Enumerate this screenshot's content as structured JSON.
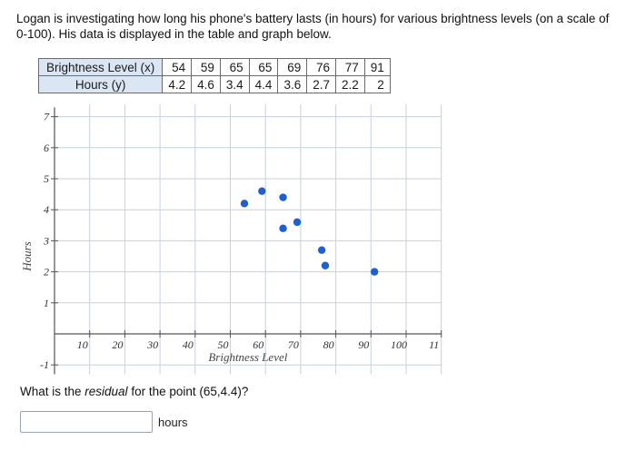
{
  "prompt": "Logan is investigating how long his phone's battery lasts (in hours) for various brightness levels (on a scale of 0-100). His data is displayed in the table and graph below.",
  "table": {
    "x_header": "Brightness Level (x)",
    "y_header": "Hours (y)",
    "x_values": [
      "54",
      "59",
      "65",
      "65",
      "69",
      "76",
      "77",
      "91"
    ],
    "y_values": [
      "4.2",
      "4.6",
      "3.4",
      "4.4",
      "3.6",
      "2.7",
      "2.2",
      "2"
    ]
  },
  "chart_data": {
    "type": "scatter",
    "xlabel": "Brightness Level",
    "ylabel": "Hours",
    "xlim": [
      0,
      110
    ],
    "ylim": [
      -1,
      7
    ],
    "x_ticks": [
      "10",
      "20",
      "30",
      "40",
      "50",
      "60",
      "70",
      "80",
      "90",
      "100",
      "11"
    ],
    "y_ticks": [
      "7",
      "6",
      "5",
      "4",
      "3",
      "2",
      "1",
      "-1"
    ],
    "points": [
      {
        "x": 54,
        "y": 4.2
      },
      {
        "x": 59,
        "y": 4.6
      },
      {
        "x": 65,
        "y": 3.4
      },
      {
        "x": 65,
        "y": 4.4
      },
      {
        "x": 69,
        "y": 3.6
      },
      {
        "x": 76,
        "y": 2.7
      },
      {
        "x": 77,
        "y": 2.2
      },
      {
        "x": 91,
        "y": 2
      }
    ],
    "point_color": "#1f5fd6",
    "grid": true
  },
  "question": {
    "before": "What is the ",
    "emphasis": "residual",
    "after": " for the point (65,4.4)?"
  },
  "answer": {
    "value": "",
    "unit": "hours"
  }
}
